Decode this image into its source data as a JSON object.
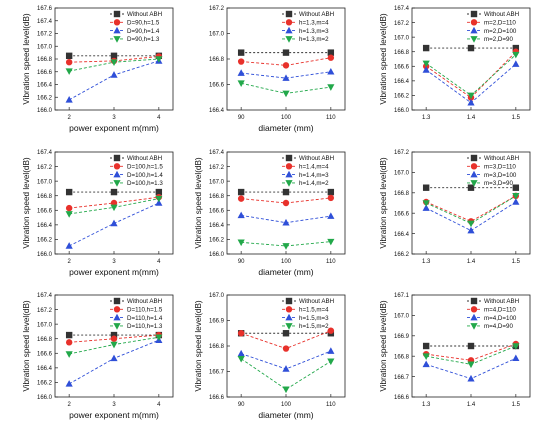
{
  "colors": {
    "Without ABH": "#333333",
    "s1": "#e8312b",
    "s2": "#2f4fd8",
    "s3": "#22a84a"
  },
  "chart_data": [
    {
      "type": "line",
      "xlabel": "power exponent m(mm)",
      "ylabel": "Vibration speed level(dB)",
      "x": [
        2,
        3,
        4
      ],
      "xticks": [
        "2",
        "3",
        "4"
      ],
      "ylim": [
        166.0,
        167.6
      ],
      "yticks": [
        166.0,
        166.2,
        166.4,
        166.6,
        166.8,
        167.0,
        167.2,
        167.4,
        167.6
      ],
      "series": [
        {
          "name": "Without ABH",
          "values": [
            166.85,
            166.85,
            166.85
          ]
        },
        {
          "name": "D=90,h=1.5",
          "values": [
            166.75,
            166.77,
            166.84
          ]
        },
        {
          "name": "D=90,h=1.4",
          "values": [
            166.16,
            166.55,
            166.77
          ]
        },
        {
          "name": "D=90,h=1.3",
          "values": [
            166.61,
            166.75,
            166.8
          ]
        }
      ]
    },
    {
      "type": "line",
      "xlabel": "diameter (mm)",
      "ylabel": "",
      "x": [
        90,
        100,
        110
      ],
      "xticks": [
        "90",
        "100",
        "110"
      ],
      "ylim": [
        166.4,
        167.2
      ],
      "yticks": [
        166.4,
        166.6,
        166.8,
        167.0,
        167.2
      ],
      "series": [
        {
          "name": "Without ABH",
          "values": [
            166.85,
            166.85,
            166.85
          ]
        },
        {
          "name": "h=1.3,m=4",
          "values": [
            166.78,
            166.75,
            166.81
          ]
        },
        {
          "name": "h=1.3,m=3",
          "values": [
            166.69,
            166.65,
            166.7
          ]
        },
        {
          "name": "h=1.3,m=2",
          "values": [
            166.61,
            166.53,
            166.58
          ]
        }
      ]
    },
    {
      "type": "line",
      "xlabel": "",
      "ylabel": "Vibration speed level(dB)",
      "x": [
        1.3,
        1.4,
        1.5
      ],
      "xticks": [
        "1.3",
        "1.4",
        "1.5"
      ],
      "ylim": [
        166.0,
        167.4
      ],
      "yticks": [
        166.0,
        166.2,
        166.4,
        166.6,
        166.8,
        167.0,
        167.2,
        167.4
      ],
      "series": [
        {
          "name": "Without ABH",
          "values": [
            166.85,
            166.85,
            166.85
          ]
        },
        {
          "name": "m=2,D=110",
          "values": [
            166.6,
            166.17,
            166.8
          ]
        },
        {
          "name": "m=2,D=100",
          "values": [
            166.55,
            166.1,
            166.63
          ]
        },
        {
          "name": "m=2,D=90",
          "values": [
            166.64,
            166.2,
            166.76
          ]
        }
      ]
    },
    {
      "type": "line",
      "xlabel": "power exponent m(mm)",
      "ylabel": "Vibration speed level(dB)",
      "x": [
        2,
        3,
        4
      ],
      "xticks": [
        "2",
        "3",
        "4"
      ],
      "ylim": [
        166.0,
        167.4
      ],
      "yticks": [
        166.0,
        166.2,
        166.4,
        166.6,
        166.8,
        167.0,
        167.2,
        167.4
      ],
      "series": [
        {
          "name": "Without ABH",
          "values": [
            166.85,
            166.85,
            166.85
          ]
        },
        {
          "name": "D=100,h=1.5",
          "values": [
            166.63,
            166.7,
            166.78
          ]
        },
        {
          "name": "D=100,h=1.4",
          "values": [
            166.11,
            166.42,
            166.7
          ]
        },
        {
          "name": "D=100,h=1.3",
          "values": [
            166.55,
            166.64,
            166.76
          ]
        }
      ]
    },
    {
      "type": "line",
      "xlabel": "diameter (mm)",
      "ylabel": "Vibration speed level(dB)",
      "x": [
        90,
        100,
        110
      ],
      "xticks": [
        "90",
        "100",
        "110"
      ],
      "ylim": [
        166.0,
        167.4
      ],
      "yticks": [
        166.0,
        166.2,
        166.4,
        166.6,
        166.8,
        167.0,
        167.2,
        167.4
      ],
      "series": [
        {
          "name": "Without ABH",
          "values": [
            166.85,
            166.85,
            166.85
          ]
        },
        {
          "name": "h=1.4,m=4",
          "values": [
            166.76,
            166.7,
            166.77
          ]
        },
        {
          "name": "h=1.4,m=3",
          "values": [
            166.53,
            166.43,
            166.52
          ]
        },
        {
          "name": "h=1.4,m=2",
          "values": [
            166.16,
            166.11,
            166.17
          ]
        }
      ]
    },
    {
      "type": "line",
      "xlabel": "",
      "ylabel": "Vibration speed level(dB)",
      "x": [
        1.3,
        1.4,
        1.5
      ],
      "xticks": [
        "1.3",
        "1.4",
        "1.5"
      ],
      "ylim": [
        166.2,
        167.2
      ],
      "yticks": [
        166.2,
        166.4,
        166.6,
        166.8,
        167.0,
        167.2
      ],
      "series": [
        {
          "name": "Without ABH",
          "values": [
            166.85,
            166.85,
            166.85
          ]
        },
        {
          "name": "m=3,D=110",
          "values": [
            166.71,
            166.52,
            166.77
          ]
        },
        {
          "name": "m=3,D=100",
          "values": [
            166.65,
            166.43,
            166.71
          ]
        },
        {
          "name": "m=3,D=90",
          "values": [
            166.7,
            166.5,
            166.77
          ]
        }
      ]
    },
    {
      "type": "line",
      "xlabel": "power exponent m(mm)",
      "ylabel": "Vibration speed level(dB)",
      "x": [
        2,
        3,
        4
      ],
      "xticks": [
        "2",
        "3",
        "4"
      ],
      "ylim": [
        166.0,
        167.4
      ],
      "yticks": [
        166.0,
        166.2,
        166.4,
        166.6,
        166.8,
        167.0,
        167.2,
        167.4
      ],
      "series": [
        {
          "name": "Without ABH",
          "values": [
            166.85,
            166.85,
            166.85
          ]
        },
        {
          "name": "D=110,h=1.5",
          "values": [
            166.75,
            166.8,
            166.85
          ]
        },
        {
          "name": "D=110,h=1.4",
          "values": [
            166.18,
            166.53,
            166.78
          ]
        },
        {
          "name": "D=110,h=1.3",
          "values": [
            166.59,
            166.72,
            166.82
          ]
        }
      ]
    },
    {
      "type": "line",
      "xlabel": "diameter (mm)",
      "ylabel": "Vibration speed level(dB)",
      "x": [
        90,
        100,
        110
      ],
      "xticks": [
        "90",
        "100",
        "110"
      ],
      "ylim": [
        166.6,
        167.0
      ],
      "yticks": [
        166.6,
        166.7,
        166.8,
        166.9,
        167.0
      ],
      "series": [
        {
          "name": "Without ABH",
          "values": [
            166.85,
            166.85,
            166.85
          ]
        },
        {
          "name": "h=1.5,m=4",
          "values": [
            166.85,
            166.79,
            166.86
          ]
        },
        {
          "name": "h=1.5,m=3",
          "values": [
            166.77,
            166.71,
            166.78
          ]
        },
        {
          "name": "h=1.5,m=2",
          "values": [
            166.75,
            166.63,
            166.74
          ]
        }
      ]
    },
    {
      "type": "line",
      "xlabel": "",
      "ylabel": "Vibration speed level(dB)",
      "x": [
        1.3,
        1.4,
        1.5
      ],
      "xticks": [
        "1.3",
        "1.4",
        "1.5"
      ],
      "ylim": [
        166.6,
        167.1
      ],
      "yticks": [
        166.6,
        166.7,
        166.8,
        166.9,
        167.0,
        167.1
      ],
      "series": [
        {
          "name": "Without ABH",
          "values": [
            166.85,
            166.85,
            166.85
          ]
        },
        {
          "name": "m=4,D=110",
          "values": [
            166.81,
            166.78,
            166.86
          ]
        },
        {
          "name": "m=4,D=100",
          "values": [
            166.76,
            166.69,
            166.79
          ]
        },
        {
          "name": "m=4,D=90",
          "values": [
            166.8,
            166.76,
            166.85
          ]
        }
      ]
    }
  ]
}
